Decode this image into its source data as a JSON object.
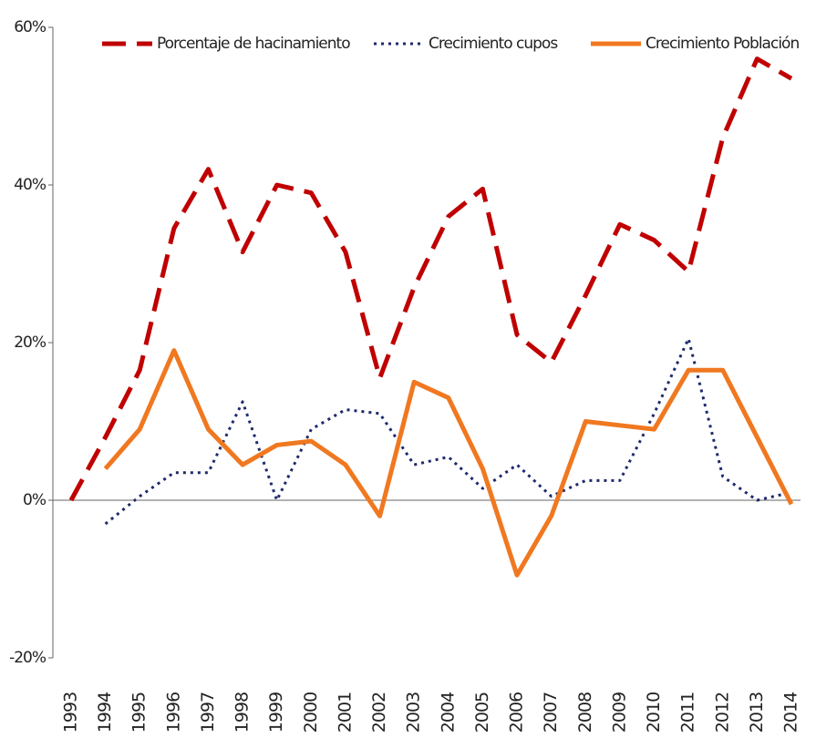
{
  "chart_data": {
    "type": "line",
    "categories": [
      "1993",
      "1994",
      "1995",
      "1996",
      "1997",
      "1998",
      "1999",
      "2000",
      "2001",
      "2002",
      "2003",
      "2004",
      "2005",
      "2006",
      "2007",
      "2008",
      "2009",
      "2010",
      "2011",
      "2012",
      "2013",
      "2014"
    ],
    "series": [
      {
        "name": "Porcentaje de hacinamiento",
        "color": "#c00000",
        "style": "dashed",
        "values": [
          0,
          8,
          16.5,
          34.5,
          42,
          31.5,
          40,
          39,
          31.5,
          15.5,
          27,
          36,
          39.5,
          21,
          17.5,
          26,
          35,
          33,
          29,
          46,
          56,
          53.5
        ]
      },
      {
        "name": "Crecimiento cupos",
        "color": "#1f2a6b",
        "style": "dotted",
        "values": [
          null,
          -3,
          0.5,
          3.5,
          3.5,
          12.5,
          0,
          9,
          11.5,
          11,
          4.5,
          5.5,
          1.5,
          4.5,
          0.5,
          2.5,
          2.5,
          11,
          20.5,
          3,
          0,
          1
        ]
      },
      {
        "name": "Crecimiento Población",
        "color": "#f07820",
        "style": "solid",
        "values": [
          null,
          4,
          9,
          19,
          9,
          4.5,
          7,
          7.5,
          4.5,
          -2,
          15,
          13,
          4,
          -9.5,
          -2,
          10,
          9.5,
          9,
          16.5,
          16.5,
          8,
          -0.5
        ]
      }
    ],
    "ylim": [
      -20,
      60
    ],
    "yticks": [
      {
        "value": -20,
        "label": "-20%"
      },
      {
        "value": 0,
        "label": "0%"
      },
      {
        "value": 20,
        "label": "20%"
      },
      {
        "value": 40,
        "label": "40%"
      },
      {
        "value": 60,
        "label": "60%"
      }
    ],
    "legend": "top"
  }
}
